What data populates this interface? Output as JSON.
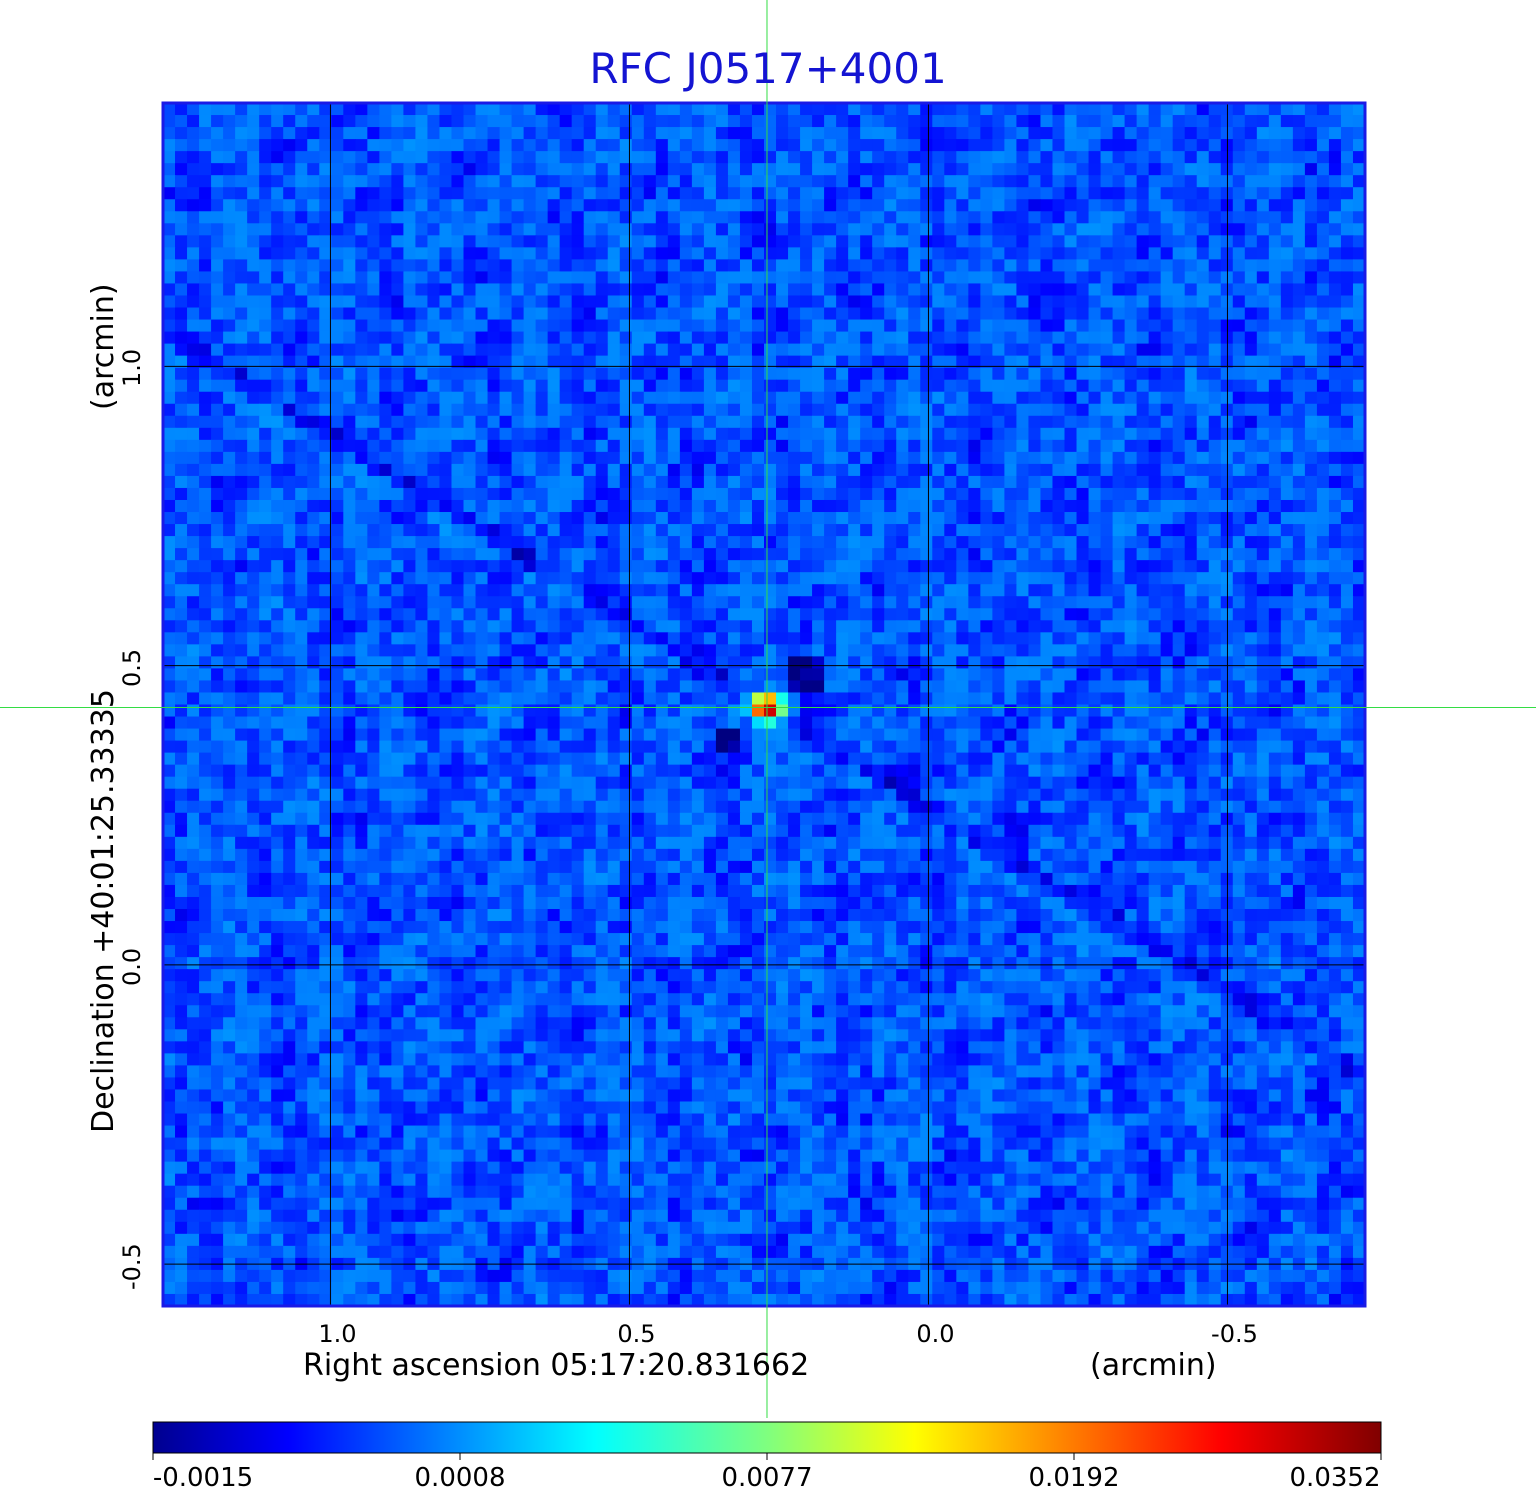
{
  "chart_data": {
    "type": "heatmap",
    "title": "RFC J0517+4001",
    "xlabel": "Right ascension  05:17:20.831662",
    "xlabel_unit": "(arcmin)",
    "ylabel": "Declination  +40:01:25.33335",
    "ylabel_unit": "(arcmin)",
    "x_ticks": [
      "1.0",
      "0.5",
      "0.0",
      "-0.5"
    ],
    "y_ticks": [
      "1.0",
      "0.5",
      "0.0",
      "-0.5"
    ],
    "xlim": [
      1.28,
      -0.73
    ],
    "ylim": [
      -0.57,
      1.44
    ],
    "grid": true,
    "crosshair": {
      "x": 0.27,
      "y": 0.43,
      "color": "#33dd44"
    },
    "colorbar": {
      "colormap": "jet",
      "ticks": [
        "-0.0015",
        "0.0008",
        "0.0077",
        "0.0192",
        "0.0352"
      ],
      "min": -0.0015,
      "max": 0.0352
    },
    "source": {
      "x": 0.27,
      "y": 0.43,
      "peak": 0.0352,
      "background_level": 0.0004,
      "shape": "compact peak with negative sidelobes and a diagonal stripe artifact running upper-left to lower-right"
    }
  }
}
